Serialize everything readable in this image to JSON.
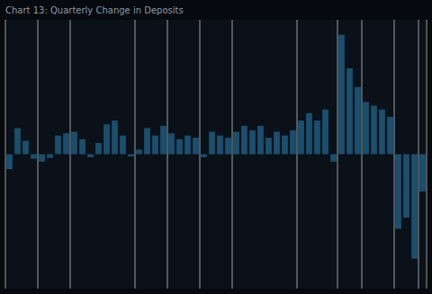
{
  "chart_data": {
    "type": "bar",
    "title": "Chart 13: Quarterly Change in Deposits",
    "categories": [
      null,
      null,
      null,
      null,
      null,
      null,
      null,
      null,
      null,
      null,
      null,
      null,
      null,
      null,
      null,
      null,
      null,
      null,
      null,
      null,
      null,
      null,
      null,
      null,
      null,
      null,
      null,
      null,
      null,
      null,
      null,
      null,
      null,
      null,
      null,
      null,
      null,
      null,
      null,
      null,
      null,
      null,
      null,
      null,
      null,
      null,
      null,
      null,
      null,
      null,
      null,
      null
    ],
    "values": [
      -2.0,
      3.5,
      1.8,
      -0.6,
      -1.0,
      -0.5,
      2.5,
      2.8,
      3.0,
      2.0,
      -0.4,
      1.5,
      4.0,
      4.5,
      2.5,
      -0.3,
      0.6,
      3.5,
      2.5,
      3.8,
      2.8,
      2.0,
      2.5,
      2.2,
      -0.4,
      3.0,
      2.5,
      2.2,
      3.0,
      3.8,
      3.2,
      3.8,
      2.2,
      3.0,
      2.5,
      3.2,
      4.5,
      5.5,
      4.5,
      6.0,
      -1.0,
      16.0,
      11.5,
      9.0,
      7.0,
      6.5,
      6.0,
      5.0,
      -10.0,
      -8.5,
      -14.0,
      -5.0
    ],
    "color": "#1a4f6e",
    "ylim": [
      -18,
      18
    ],
    "yticks": [],
    "xticks": [
      0,
      4,
      8,
      16,
      20,
      24,
      28,
      36,
      41,
      44,
      48,
      51
    ],
    "grid": true,
    "tick_labels": false
  }
}
